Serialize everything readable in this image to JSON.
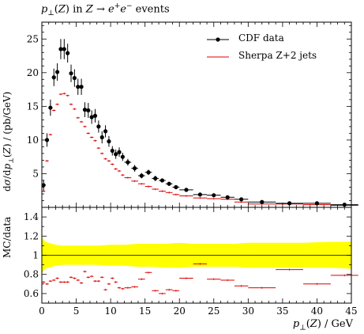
{
  "chart_data": [
    {
      "type": "scatter",
      "title": "p⊥(Z) in Z → e+e− events",
      "xlabel": "p⊥(Z) / GeV",
      "ylabel": "dσ/dp⊥(Z) / (pb/GeV)",
      "xlim": [
        0,
        45
      ],
      "ylim": [
        0,
        27.5
      ],
      "x_ticks": [
        "0",
        "5",
        "10",
        "15",
        "20",
        "25",
        "30",
        "35",
        "40",
        "45"
      ],
      "y_ticks": [
        "5",
        "10",
        "15",
        "20",
        "25"
      ],
      "legend_placement": "top-right",
      "legend": [
        "CDF data",
        "Sherpa Z+2 jets"
      ],
      "series": [
        {
          "name": "CDF data",
          "color": "#000000",
          "x": [
            0.25,
            0.75,
            1.25,
            1.75,
            2.25,
            2.75,
            3.25,
            3.75,
            4.25,
            4.75,
            5.25,
            5.75,
            6.25,
            6.75,
            7.25,
            7.75,
            8.25,
            8.75,
            9.25,
            9.75,
            10.25,
            10.75,
            11.25,
            11.75,
            12.5,
            13.5,
            14.5,
            15.5,
            16.5,
            17.5,
            18.5,
            19.5,
            21.0,
            23.0,
            25.0,
            27.0,
            29.0,
            32.0,
            36.0,
            40.0,
            44.0
          ],
          "y": [
            3.3,
            10.0,
            14.8,
            19.3,
            20.1,
            23.5,
            23.5,
            22.9,
            19.9,
            19.2,
            17.9,
            17.9,
            14.5,
            14.4,
            13.4,
            13.6,
            12.0,
            10.4,
            11.3,
            9.8,
            8.4,
            7.9,
            8.2,
            7.5,
            6.7,
            5.8,
            4.7,
            5.2,
            4.3,
            4.0,
            3.5,
            3.0,
            2.6,
            1.9,
            1.8,
            1.5,
            1.2,
            0.8,
            0.6,
            0.6,
            0.4
          ],
          "yerr": [
            0.8,
            1.0,
            1.2,
            1.3,
            1.3,
            1.5,
            1.5,
            1.4,
            1.3,
            1.3,
            1.2,
            1.2,
            1.1,
            1.1,
            1.0,
            1.0,
            0.9,
            0.9,
            0.9,
            0.8,
            0.7,
            0.7,
            0.7,
            0.6,
            0.5,
            0.5,
            0.4,
            0.4,
            0.4,
            0.3,
            0.3,
            0.3,
            0.2,
            0.2,
            0.2,
            0.15,
            0.15,
            0.1,
            0.1,
            0.1,
            0.1
          ]
        },
        {
          "name": "Sherpa Z+2 jets",
          "color": "#dd0000",
          "x": [
            0.25,
            0.75,
            1.25,
            1.75,
            2.25,
            2.75,
            3.25,
            3.75,
            4.25,
            4.75,
            5.25,
            5.75,
            6.25,
            6.75,
            7.25,
            7.75,
            8.25,
            8.75,
            9.25,
            9.75,
            10.25,
            10.75,
            11.25,
            11.75,
            12.5,
            13.5,
            14.5,
            15.5,
            16.5,
            17.5,
            18.5,
            19.5,
            21.0,
            23.0,
            25.0,
            27.0,
            29.0,
            32.0,
            36.0,
            40.0,
            44.0
          ],
          "y": [
            2.4,
            6.9,
            10.8,
            14.4,
            15.3,
            16.8,
            16.9,
            16.6,
            15.3,
            14.6,
            13.3,
            12.7,
            12.0,
            11.0,
            10.4,
            9.9,
            8.8,
            8.0,
            7.2,
            6.9,
            6.4,
            5.7,
            5.4,
            4.8,
            4.4,
            3.9,
            3.5,
            3.1,
            2.7,
            2.4,
            2.2,
            1.9,
            1.7,
            1.4,
            1.3,
            1.2,
            0.8,
            0.5,
            0.5,
            0.4,
            0.3
          ],
          "bin_halfwidth": [
            0.25,
            0.25,
            0.25,
            0.25,
            0.25,
            0.25,
            0.25,
            0.25,
            0.25,
            0.25,
            0.25,
            0.25,
            0.25,
            0.25,
            0.25,
            0.25,
            0.25,
            0.25,
            0.25,
            0.25,
            0.25,
            0.25,
            0.25,
            0.25,
            0.5,
            0.5,
            0.5,
            0.5,
            0.5,
            0.5,
            0.5,
            0.5,
            1.0,
            1.0,
            1.0,
            1.0,
            1.0,
            2.0,
            2.0,
            2.0,
            2.0
          ]
        }
      ]
    },
    {
      "type": "scatter",
      "xlabel": "p⊥(Z) / GeV",
      "ylabel": "MC/data",
      "xlim": [
        0,
        45
      ],
      "ylim": [
        0.5,
        1.5
      ],
      "x_ticks": [
        "0",
        "5",
        "10",
        "15",
        "20",
        "25",
        "30",
        "35",
        "40",
        "45"
      ],
      "y_ticks": [
        "0.6",
        "0.8",
        "1",
        "1.2",
        "1.4"
      ],
      "reference_line": 1.0,
      "band_color": "#ffff00",
      "band": {
        "x": [
          0,
          0.5,
          1,
          1.5,
          2,
          3,
          4,
          5,
          6,
          8,
          10,
          12,
          14,
          16,
          18,
          20,
          22,
          24,
          26,
          28,
          30,
          34,
          38,
          42,
          45
        ],
        "low": [
          0.81,
          0.86,
          0.87,
          0.88,
          0.89,
          0.9,
          0.9,
          0.9,
          0.9,
          0.9,
          0.89,
          0.89,
          0.88,
          0.88,
          0.87,
          0.87,
          0.88,
          0.88,
          0.88,
          0.88,
          0.87,
          0.87,
          0.87,
          0.87,
          0.86
        ],
        "high": [
          1.19,
          1.14,
          1.13,
          1.12,
          1.11,
          1.1,
          1.1,
          1.1,
          1.1,
          1.1,
          1.11,
          1.11,
          1.12,
          1.12,
          1.12,
          1.13,
          1.12,
          1.12,
          1.12,
          1.12,
          1.13,
          1.13,
          1.13,
          1.14,
          1.14
        ]
      },
      "series": [
        {
          "name": "Sherpa Z+2 jets",
          "color": "#dd0000",
          "x": [
            0.25,
            0.75,
            1.25,
            1.75,
            2.25,
            2.75,
            3.25,
            3.75,
            4.25,
            4.75,
            5.25,
            5.75,
            6.25,
            6.75,
            7.25,
            7.75,
            8.25,
            8.75,
            9.25,
            9.75,
            10.25,
            10.75,
            11.25,
            11.75,
            12.5,
            13.5,
            14.5,
            15.5,
            16.5,
            17.5,
            18.5,
            19.5,
            21.0,
            23.0,
            25.0,
            27.0,
            29.0,
            32.0,
            36.0,
            40.0,
            44.0
          ],
          "y": [
            0.72,
            0.7,
            0.73,
            0.74,
            0.76,
            0.72,
            0.72,
            0.72,
            0.77,
            0.76,
            0.74,
            0.71,
            0.83,
            0.77,
            0.78,
            0.73,
            0.73,
            0.77,
            0.64,
            0.7,
            0.76,
            0.72,
            0.66,
            0.65,
            0.66,
            0.67,
            0.75,
            0.82,
            0.63,
            0.6,
            0.64,
            0.63,
            0.76,
            0.91,
            0.75,
            0.74,
            0.68,
            0.66,
            0.85,
            0.7,
            0.79
          ],
          "bin_halfwidth": [
            0.25,
            0.25,
            0.25,
            0.25,
            0.25,
            0.25,
            0.25,
            0.25,
            0.25,
            0.25,
            0.25,
            0.25,
            0.25,
            0.25,
            0.25,
            0.25,
            0.25,
            0.25,
            0.25,
            0.25,
            0.25,
            0.25,
            0.25,
            0.25,
            0.5,
            0.5,
            0.5,
            0.5,
            0.5,
            0.5,
            0.5,
            0.5,
            1.0,
            1.0,
            1.0,
            1.0,
            1.0,
            2.0,
            2.0,
            2.0,
            2.0
          ]
        }
      ]
    }
  ]
}
